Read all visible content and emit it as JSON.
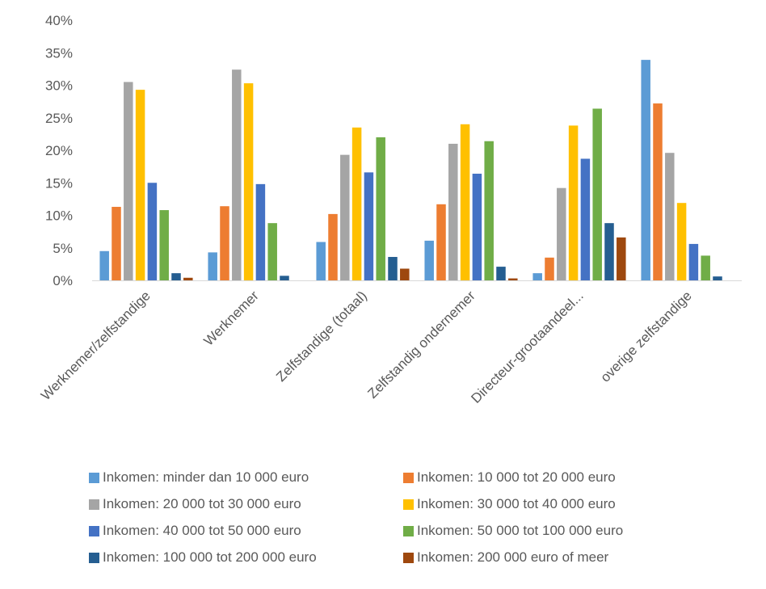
{
  "chart_data": {
    "type": "bar",
    "title": "",
    "xlabel": "",
    "ylabel": "",
    "ylim": [
      0,
      40
    ],
    "yticks": [
      "0%",
      "5%",
      "10%",
      "15%",
      "20%",
      "25%",
      "30%",
      "35%",
      "40%"
    ],
    "grid": false,
    "legend_position": "bottom",
    "categories": [
      "Werknemer/zelfstandige",
      "Werknemer",
      "Zelfstandige (totaal)",
      "Zelfstandig ondernemer",
      "Directeur-grootaandeel...",
      "overige zelfstandige"
    ],
    "series": [
      {
        "name": "Inkomen: minder dan 10 000 euro",
        "color": "#5B9BD5",
        "values": [
          4.5,
          4.3,
          5.9,
          6.1,
          1.1,
          33.9
        ]
      },
      {
        "name": "Inkomen: 10 000 tot 20 000 euro",
        "color": "#ED7D31",
        "values": [
          11.3,
          11.4,
          10.2,
          11.7,
          3.5,
          27.2
        ]
      },
      {
        "name": "Inkomen: 20 000 tot 30 000 euro",
        "color": "#A5A5A5",
        "values": [
          30.5,
          32.4,
          19.3,
          21.0,
          14.2,
          19.6
        ]
      },
      {
        "name": "Inkomen: 30 000 tot 40 000 euro",
        "color": "#FFC000",
        "values": [
          29.3,
          30.3,
          23.5,
          24.0,
          23.8,
          11.9
        ]
      },
      {
        "name": "Inkomen: 40 000 tot 50 000 euro",
        "color": "#4472C4",
        "values": [
          15.0,
          14.8,
          16.6,
          16.4,
          18.7,
          5.6
        ]
      },
      {
        "name": "Inkomen: 50 000 tot 100 000 euro",
        "color": "#70AD47",
        "values": [
          10.8,
          8.8,
          22.0,
          21.4,
          26.4,
          3.8
        ]
      },
      {
        "name": "Inkomen: 100 000 tot 200 000 euro",
        "color": "#255E91",
        "values": [
          1.1,
          0.7,
          3.6,
          2.1,
          8.8,
          0.6
        ]
      },
      {
        "name": "Inkomen: 200 000 euro of meer",
        "color": "#9E480E",
        "values": [
          0.4,
          0.0,
          1.8,
          0.3,
          6.6,
          0.0
        ]
      }
    ]
  }
}
